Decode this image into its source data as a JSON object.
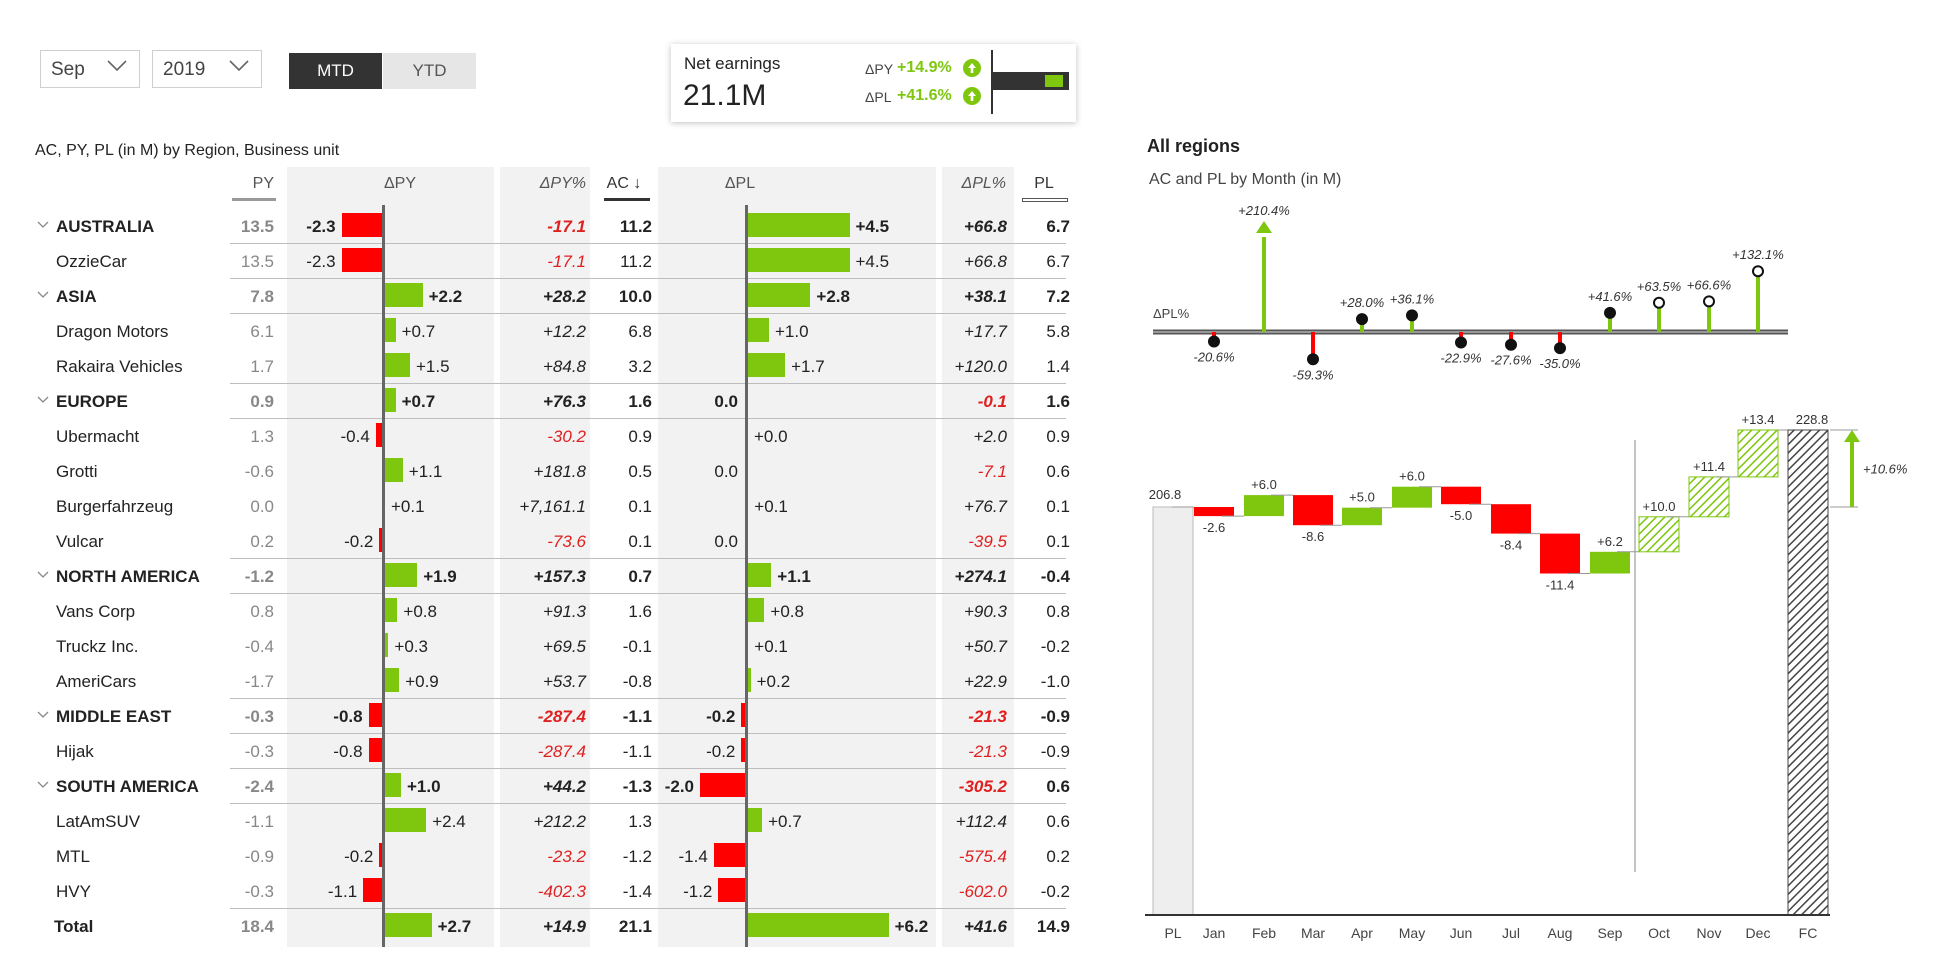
{
  "filters": {
    "month": "Sep",
    "year": "2019"
  },
  "toggle": {
    "mtd": "MTD",
    "ytd": "YTD",
    "active": "MTD"
  },
  "kpi": {
    "title": "Net earnings",
    "value": "21.1M",
    "dpy_label": "ΔPY",
    "dpy_value": "+14.9%",
    "dpl_label": "ΔPL",
    "dpl_value": "+41.6%"
  },
  "colors": {
    "positive": "#7ec70e",
    "negative": "#ff0000",
    "header_bg": "#f2f2f2",
    "dark": "#333333"
  },
  "table": {
    "title": "AC, PY, PL (in M) by Region, Business unit",
    "headers": {
      "py": "PY",
      "dpy": "ΔPY",
      "dpy_pct": "ΔPY%",
      "ac": "AC ↓",
      "dpl": "ΔPL",
      "dpl_pct": "ΔPL%",
      "pl": "PL"
    },
    "rows": [
      {
        "name": "AUSTRALIA",
        "level": 0,
        "py": "13.5",
        "dpy": -2.3,
        "dpy_label": "-2.3",
        "dpy_pct": "-17.1",
        "ac": "11.2",
        "dpl": 4.5,
        "dpl_label": "+4.5",
        "dpl_pct": "+66.8",
        "pl": "6.7"
      },
      {
        "name": "OzzieCar",
        "level": 1,
        "py": "13.5",
        "dpy": -2.3,
        "dpy_label": "-2.3",
        "dpy_pct": "-17.1",
        "ac": "11.2",
        "dpl": 4.5,
        "dpl_label": "+4.5",
        "dpl_pct": "+66.8",
        "pl": "6.7"
      },
      {
        "name": "ASIA",
        "level": 0,
        "py": "7.8",
        "dpy": 2.2,
        "dpy_label": "+2.2",
        "dpy_pct": "+28.2",
        "ac": "10.0",
        "dpl": 2.8,
        "dpl_label": "+2.8",
        "dpl_pct": "+38.1",
        "pl": "7.2"
      },
      {
        "name": "Dragon Motors",
        "level": 1,
        "py": "6.1",
        "dpy": 0.7,
        "dpy_label": "+0.7",
        "dpy_pct": "+12.2",
        "ac": "6.8",
        "dpl": 1.0,
        "dpl_label": "+1.0",
        "dpl_pct": "+17.7",
        "pl": "5.8"
      },
      {
        "name": "Rakaira Vehicles",
        "level": 1,
        "py": "1.7",
        "dpy": 1.5,
        "dpy_label": "+1.5",
        "dpy_pct": "+84.8",
        "ac": "3.2",
        "dpl": 1.7,
        "dpl_label": "+1.7",
        "dpl_pct": "+120.0",
        "pl": "1.4"
      },
      {
        "name": "EUROPE",
        "level": 0,
        "py": "0.9",
        "dpy": 0.7,
        "dpy_label": "+0.7",
        "dpy_pct": "+76.3",
        "ac": "1.6",
        "dpl": 0.0,
        "dpl_label": "0.0",
        "dpl_pct": "-0.1",
        "pl": "1.6"
      },
      {
        "name": "Ubermacht",
        "level": 1,
        "py": "1.3",
        "dpy": -0.4,
        "dpy_label": "-0.4",
        "dpy_pct": "-30.2",
        "ac": "0.9",
        "dpl": 0.0,
        "dpl_label": "+0.0",
        "dpl_pct": "+2.0",
        "pl": "0.9"
      },
      {
        "name": "Grotti",
        "level": 1,
        "py": "-0.6",
        "dpy": 1.1,
        "dpy_label": "+1.1",
        "dpy_pct": "+181.8",
        "ac": "0.5",
        "dpl": 0.0,
        "dpl_label": "0.0",
        "dpl_pct": "-7.1",
        "pl": "0.6"
      },
      {
        "name": "Burgerfahrzeug",
        "level": 1,
        "py": "0.0",
        "dpy": 0.1,
        "dpy_label": "+0.1",
        "dpy_pct": "+7,161.1",
        "ac": "0.1",
        "dpl": 0.1,
        "dpl_label": "+0.1",
        "dpl_pct": "+76.7",
        "pl": "0.1"
      },
      {
        "name": "Vulcar",
        "level": 1,
        "py": "0.2",
        "dpy": -0.2,
        "dpy_label": "-0.2",
        "dpy_pct": "-73.6",
        "ac": "0.1",
        "dpl": 0.0,
        "dpl_label": "0.0",
        "dpl_pct": "-39.5",
        "pl": "0.1"
      },
      {
        "name": "NORTH AMERICA",
        "level": 0,
        "py": "-1.2",
        "dpy": 1.9,
        "dpy_label": "+1.9",
        "dpy_pct": "+157.3",
        "ac": "0.7",
        "dpl": 1.1,
        "dpl_label": "+1.1",
        "dpl_pct": "+274.1",
        "pl": "-0.4"
      },
      {
        "name": "Vans Corp",
        "level": 1,
        "py": "0.8",
        "dpy": 0.8,
        "dpy_label": "+0.8",
        "dpy_pct": "+91.3",
        "ac": "1.6",
        "dpl": 0.8,
        "dpl_label": "+0.8",
        "dpl_pct": "+90.3",
        "pl": "0.8"
      },
      {
        "name": "Truckz Inc.",
        "level": 1,
        "py": "-0.4",
        "dpy": 0.3,
        "dpy_label": "+0.3",
        "dpy_pct": "+69.5",
        "ac": "-0.1",
        "dpl": 0.1,
        "dpl_label": "+0.1",
        "dpl_pct": "+50.7",
        "pl": "-0.2"
      },
      {
        "name": "AmeriCars",
        "level": 1,
        "py": "-1.7",
        "dpy": 0.9,
        "dpy_label": "+0.9",
        "dpy_pct": "+53.7",
        "ac": "-0.8",
        "dpl": 0.2,
        "dpl_label": "+0.2",
        "dpl_pct": "+22.9",
        "pl": "-1.0"
      },
      {
        "name": "MIDDLE EAST",
        "level": 0,
        "py": "-0.3",
        "dpy": -0.8,
        "dpy_label": "-0.8",
        "dpy_pct": "-287.4",
        "ac": "-1.1",
        "dpl": -0.2,
        "dpl_label": "-0.2",
        "dpl_pct": "-21.3",
        "pl": "-0.9"
      },
      {
        "name": "Hijak",
        "level": 1,
        "py": "-0.3",
        "dpy": -0.8,
        "dpy_label": "-0.8",
        "dpy_pct": "-287.4",
        "ac": "-1.1",
        "dpl": -0.2,
        "dpl_label": "-0.2",
        "dpl_pct": "-21.3",
        "pl": "-0.9"
      },
      {
        "name": "SOUTH AMERICA",
        "level": 0,
        "py": "-2.4",
        "dpy": 1.0,
        "dpy_label": "+1.0",
        "dpy_pct": "+44.2",
        "ac": "-1.3",
        "dpl": -2.0,
        "dpl_label": "-2.0",
        "dpl_pct": "-305.2",
        "pl": "0.6"
      },
      {
        "name": "LatAmSUV",
        "level": 1,
        "py": "-1.1",
        "dpy": 2.4,
        "dpy_label": "+2.4",
        "dpy_pct": "+212.2",
        "ac": "1.3",
        "dpl": 0.7,
        "dpl_label": "+0.7",
        "dpl_pct": "+112.4",
        "pl": "0.6"
      },
      {
        "name": "MTL",
        "level": 1,
        "py": "-0.9",
        "dpy": -0.2,
        "dpy_label": "-0.2",
        "dpy_pct": "-23.2",
        "ac": "-1.2",
        "dpl": -1.4,
        "dpl_label": "-1.4",
        "dpl_pct": "-575.4",
        "pl": "0.2"
      },
      {
        "name": "HVY",
        "level": 1,
        "py": "-0.3",
        "dpy": -1.1,
        "dpy_label": "-1.1",
        "dpy_pct": "-402.3",
        "ac": "-1.4",
        "dpl": -1.2,
        "dpl_label": "-1.2",
        "dpl_pct": "-602.0",
        "pl": "-0.2"
      },
      {
        "name": "Total",
        "level": 2,
        "py": "18.4",
        "dpy": 2.7,
        "dpy_label": "+2.7",
        "dpy_pct": "+14.9",
        "ac": "21.1",
        "dpl": 6.2,
        "dpl_label": "+6.2",
        "dpl_pct": "+41.6",
        "pl": "14.9"
      }
    ]
  },
  "chart_data": [
    {
      "type": "lollipop",
      "title": "All regions",
      "subtitle": "AC and PL by Month (in M)",
      "ylabel": "ΔPL%",
      "categories": [
        "Jan",
        "Feb",
        "Mar",
        "Apr",
        "May",
        "Jun",
        "Jul",
        "Aug",
        "Sep",
        "Oct",
        "Nov",
        "Dec"
      ],
      "values": [
        -20.6,
        210.4,
        -59.3,
        28.0,
        36.1,
        -22.9,
        -27.6,
        -35.0,
        41.6,
        63.5,
        66.6,
        132.1
      ],
      "labels": [
        "-20.6%",
        "+210.4%",
        "-59.3%",
        "+28.0%",
        "+36.1%",
        "-22.9%",
        "-27.6%",
        "-35.0%",
        "+41.6%",
        "+63.5%",
        "+66.6%",
        "+132.1%"
      ],
      "forecast_from": "Oct"
    },
    {
      "type": "waterfall",
      "categories": [
        "PL",
        "Jan",
        "Feb",
        "Mar",
        "Apr",
        "May",
        "Jun",
        "Jul",
        "Aug",
        "Sep",
        "Oct",
        "Nov",
        "Dec",
        "FC"
      ],
      "start": 206.8,
      "start_label": "206.8",
      "deltas": [
        -2.6,
        6.0,
        -8.6,
        5.0,
        6.0,
        -5.0,
        -8.4,
        -11.4,
        6.2,
        10.0,
        11.4,
        13.4
      ],
      "delta_labels": [
        "-2.6",
        "+6.0",
        "-8.6",
        "+5.0",
        "+6.0",
        "-5.0",
        "-8.4",
        "-11.4",
        "+6.2",
        "+10.0",
        "+11.4",
        "+13.4"
      ],
      "end": 228.8,
      "end_label": "228.8",
      "change_label": "+10.6%",
      "forecast_from": "Oct"
    }
  ]
}
